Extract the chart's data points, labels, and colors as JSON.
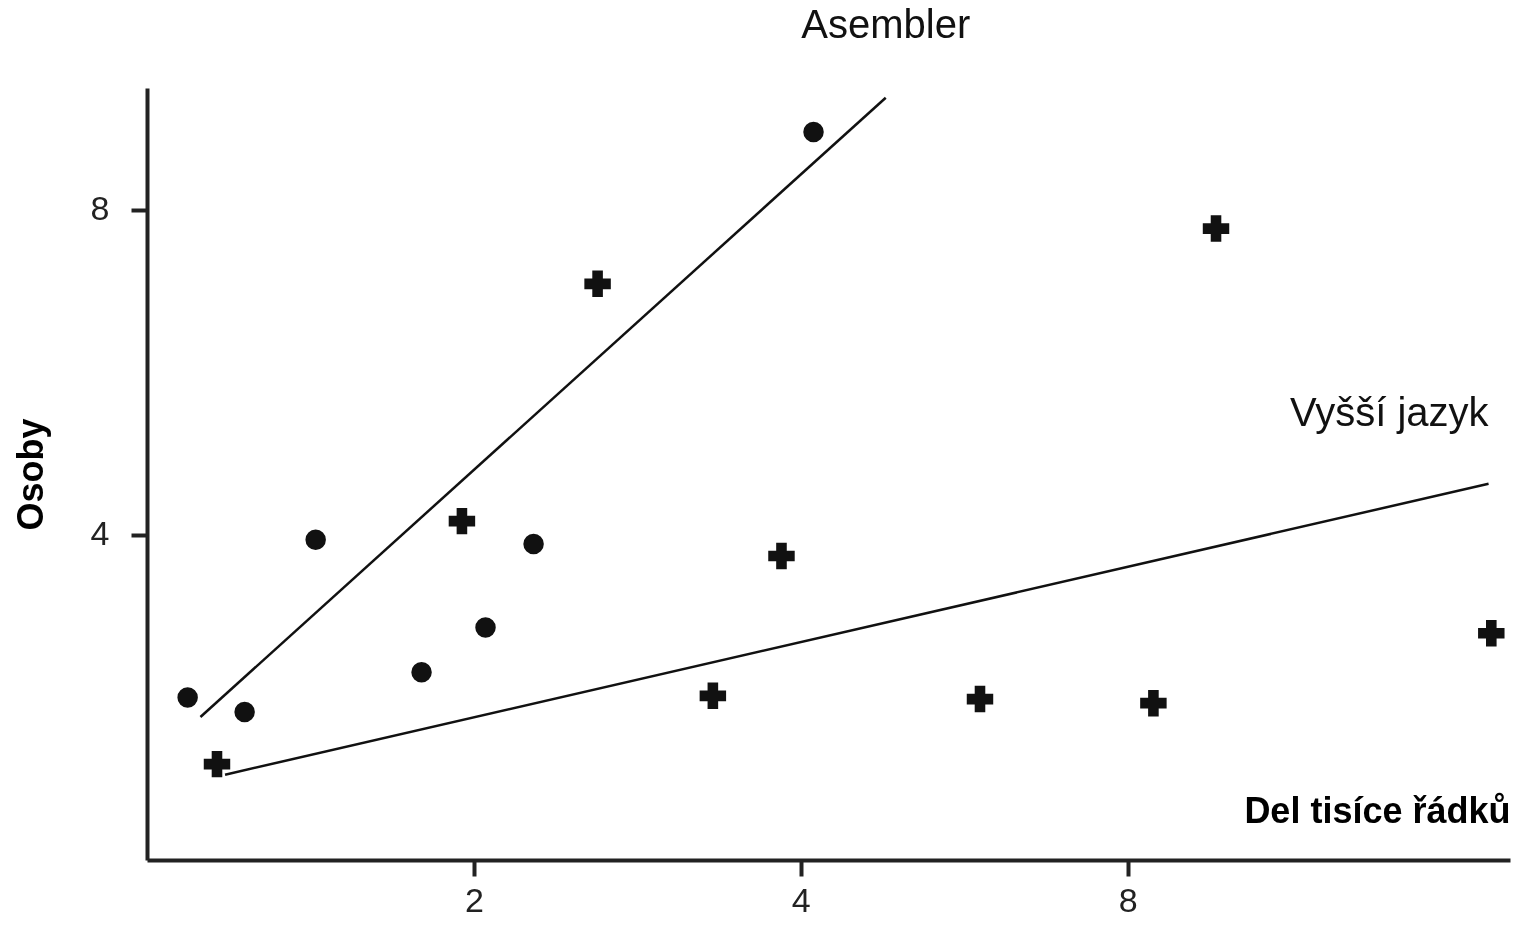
{
  "chart_data": {
    "type": "scatter",
    "xlabel": "Del tisíce řádků",
    "ylabel": "Osoby",
    "log": "x",
    "xlim": [
      1,
      18
    ],
    "xticks": [
      2,
      4,
      8
    ],
    "ylim": [
      0,
      9.5
    ],
    "yticks": [
      4,
      8
    ],
    "series": [
      {
        "type": "scatter",
        "marker": "circle",
        "color": "#111111",
        "x": [
          1.09,
          1.23,
          1.43,
          1.79,
          2.05,
          2.27,
          4.11
        ],
        "values": [
          2.0,
          1.82,
          3.94,
          2.31,
          2.86,
          3.89,
          8.96
        ]
      },
      {
        "type": "scatter",
        "marker": "cross",
        "color": "#111111",
        "x": [
          1.16,
          1.95,
          2.6,
          3.32,
          3.84,
          5.85,
          8.45,
          9.65,
          17.3
        ],
        "values": [
          1.18,
          4.17,
          7.09,
          2.02,
          3.74,
          1.98,
          1.93,
          7.77,
          2.79
        ]
      },
      {
        "type": "line",
        "name": "Asembler",
        "color": "#111111",
        "line_style": "solid",
        "marker": "none",
        "x": [
          1.12,
          4.79
        ],
        "values": [
          1.76,
          9.38
        ]
      },
      {
        "type": "line",
        "name": "Vyšší jazyk",
        "color": "#111111",
        "line_style": "solid",
        "marker": "none",
        "x": [
          1.18,
          17.2
        ],
        "values": [
          1.05,
          4.63
        ]
      }
    ]
  }
}
